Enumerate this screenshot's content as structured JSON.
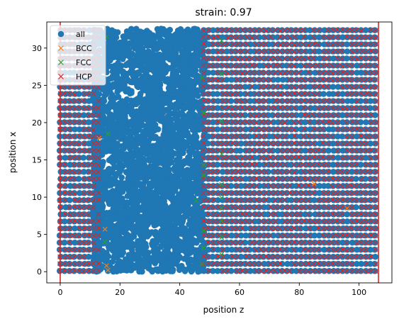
{
  "chart_data": {
    "type": "scatter",
    "title": "strain: 0.97",
    "xlabel": "position z",
    "ylabel": "position x",
    "xlim": [
      -4.5,
      111
    ],
    "ylim": [
      -1.5,
      33.5
    ],
    "xticks": [
      0,
      20,
      40,
      60,
      80,
      100
    ],
    "yticks": [
      0,
      5,
      10,
      15,
      20,
      25,
      30
    ],
    "grid": false,
    "legend_position": "top-left",
    "vertical_lines": {
      "x": [
        0,
        106.5
      ],
      "color": "#d62728"
    },
    "series": [
      {
        "name": "all",
        "marker": "circle",
        "color": "#1f77b4",
        "description_ranges": {
          "z": [
            0,
            106.5
          ],
          "x": [
            0,
            32.5
          ]
        }
      },
      {
        "name": "BCC",
        "marker": "x",
        "color": "#ff7f0e",
        "points": [
          [
            13,
            17.9
          ],
          [
            15,
            5.7
          ],
          [
            15.5,
            0.8
          ],
          [
            16,
            0.2
          ],
          [
            85,
            11.8
          ],
          [
            96,
            8.5
          ]
        ]
      },
      {
        "name": "FCC",
        "marker": "x",
        "color": "#2ca02c",
        "points": [
          [
            15.5,
            31.5
          ],
          [
            16,
            18.5
          ],
          [
            15,
            4
          ],
          [
            45.5,
            9.5
          ],
          [
            47.5,
            26
          ],
          [
            48,
            21.3
          ],
          [
            48,
            14.3
          ],
          [
            48,
            12.9
          ],
          [
            48,
            5.5
          ],
          [
            48,
            3.2
          ],
          [
            47.5,
            1.0
          ],
          [
            54,
            31
          ],
          [
            54,
            26.5
          ],
          [
            54,
            20.2
          ],
          [
            54,
            15.8
          ],
          [
            54,
            11.7
          ],
          [
            54,
            9.9
          ],
          [
            54,
            8.5
          ],
          [
            54,
            6.8
          ],
          [
            54,
            4.6
          ],
          [
            54,
            2.3
          ]
        ]
      },
      {
        "name": "HCP",
        "marker": "x",
        "color": "#d62728",
        "description_ranges": {
          "z_bands": [
            [
              0,
              13
            ],
            [
              48,
              106.5
            ]
          ],
          "x": [
            0,
            32.5
          ]
        }
      }
    ]
  }
}
